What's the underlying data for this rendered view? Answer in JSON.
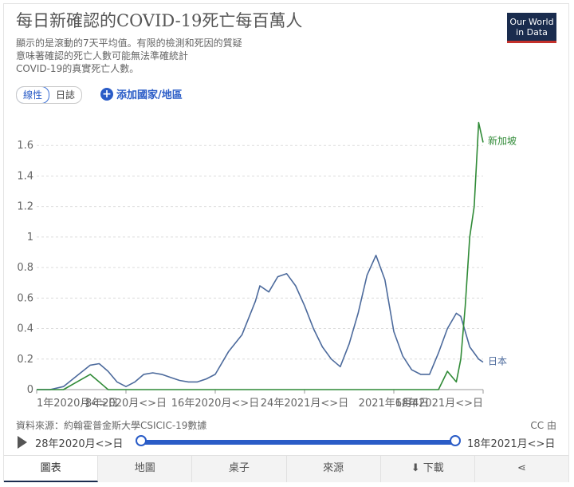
{
  "header": {
    "title": "每日新確認的COVID-19死亡每百萬人",
    "subtitle": "顯示的是滾動的7天平均值。有限的檢測和死因的質疑\n意味著確認的死亡人數可能無法準確統計\nCOVID-19的真實死亡人數。",
    "logo_line1": "Our World",
    "logo_line2": "in Data"
  },
  "controls": {
    "linear_label": "線性",
    "log_label": "日誌",
    "add_country_label": "添加國家/地區"
  },
  "colors": {
    "japan": "#4c6a9c",
    "singapore": "#2f8a36",
    "accent": "#2a5cc7"
  },
  "chart_data": {
    "type": "line",
    "x_ticks": [
      "1年2020月<>日",
      "8年2020月<>日",
      "16年2020月<>日",
      "24年2021月<>日",
      "2021年6月4日",
      "18年2021月<>日"
    ],
    "y_ticks": [
      "0",
      "0.2",
      "0.4",
      "0.6",
      "0.8",
      "1",
      "1.2",
      "1.4",
      "1.6"
    ],
    "ylim": [
      0,
      1.8
    ],
    "x": [
      0,
      3,
      6,
      9,
      12,
      14,
      16,
      18,
      20,
      22,
      24,
      26,
      28,
      30,
      32,
      34,
      36,
      38,
      40,
      43,
      46,
      49,
      50,
      52,
      54,
      56,
      58,
      60,
      62,
      64,
      66,
      68,
      70,
      72,
      74,
      76,
      78,
      79,
      80,
      82,
      84,
      86,
      88,
      90,
      92,
      94,
      95,
      96,
      97,
      98,
      99,
      100
    ],
    "series": [
      {
        "name": "日本",
        "values": [
          0,
          0,
          0.02,
          0.09,
          0.16,
          0.17,
          0.12,
          0.05,
          0.02,
          0.05,
          0.1,
          0.11,
          0.1,
          0.08,
          0.06,
          0.05,
          0.05,
          0.07,
          0.1,
          0.25,
          0.36,
          0.58,
          0.68,
          0.64,
          0.74,
          0.76,
          0.68,
          0.55,
          0.4,
          0.28,
          0.2,
          0.15,
          0.3,
          0.5,
          0.75,
          0.88,
          0.72,
          0.55,
          0.38,
          0.22,
          0.13,
          0.1,
          0.1,
          0.24,
          0.4,
          0.5,
          0.48,
          0.38,
          0.28,
          0.24,
          0.2,
          0.18
        ]
      },
      {
        "name": "新加坡",
        "values": [
          0,
          0,
          0,
          0.05,
          0.1,
          0.05,
          0,
          0,
          0,
          0,
          0,
          0,
          0,
          0,
          0,
          0,
          0,
          0,
          0,
          0,
          0,
          0,
          0,
          0,
          0,
          0,
          0,
          0,
          0,
          0,
          0,
          0,
          0,
          0,
          0,
          0,
          0,
          0,
          0,
          0,
          0,
          0,
          0,
          0,
          0.12,
          0.05,
          0.2,
          0.55,
          1.0,
          1.2,
          1.75,
          1.62
        ]
      }
    ]
  },
  "footer": {
    "source": "資料來源：約翰霍普金斯大學CSICIC-19數據",
    "license": "CC 由"
  },
  "timeline": {
    "start_label": "28年2020月<>日",
    "end_label": "18年2021月<>日"
  },
  "tabs": [
    {
      "label": "圖表"
    },
    {
      "label": "地圖"
    },
    {
      "label": "桌子"
    },
    {
      "label": "來源"
    },
    {
      "label": "下載"
    },
    {
      "label": ""
    }
  ]
}
